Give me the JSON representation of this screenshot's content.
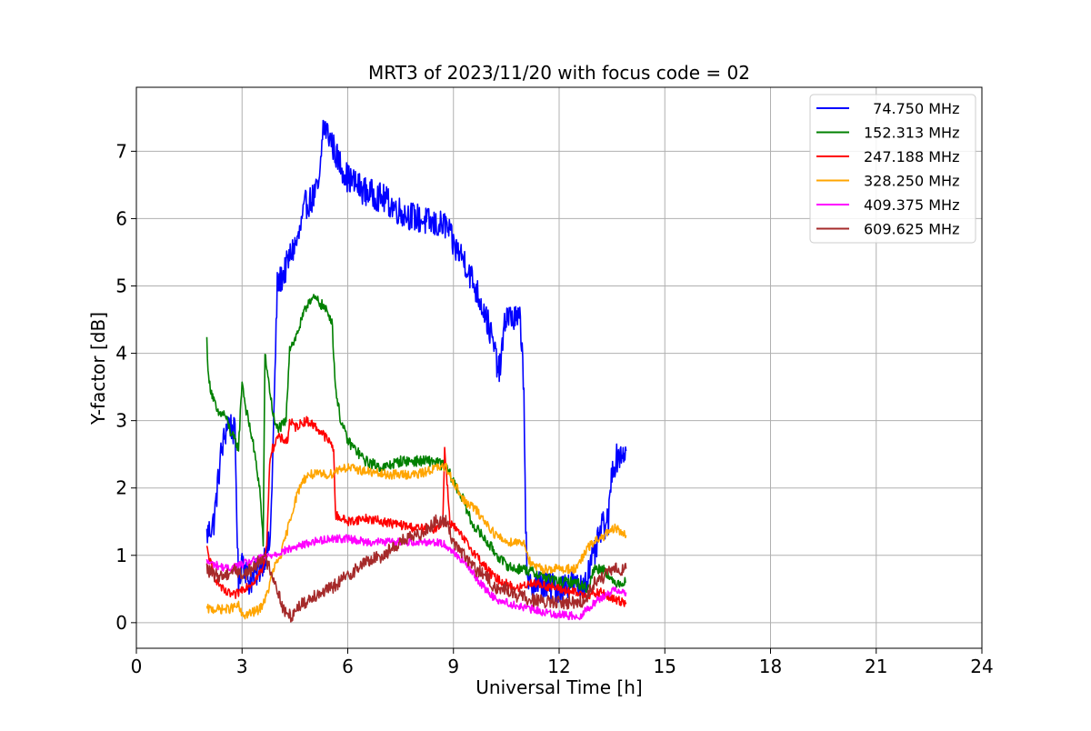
{
  "chart_data": {
    "type": "line",
    "title": "MRT3 of 2023/11/20 with focus code = 02",
    "xlabel": "Universal Time [h]",
    "ylabel": "Y-factor [dB]",
    "xlim": [
      0,
      24
    ],
    "ylim": [
      -0.38,
      7.95
    ],
    "xticks": [
      0,
      3,
      6,
      9,
      12,
      15,
      18,
      21,
      24
    ],
    "yticks": [
      0,
      1,
      2,
      3,
      4,
      5,
      6,
      7
    ],
    "grid": true,
    "legend_position": "top-right",
    "series": [
      {
        "name": "  74.750 MHz",
        "color": "#0000ff",
        "x": [
          2.0,
          2.2,
          2.4,
          2.6,
          2.8,
          2.9,
          3.0,
          3.2,
          3.5,
          3.8,
          3.9,
          4.0,
          4.2,
          4.4,
          4.6,
          4.8,
          5.0,
          5.2,
          5.3,
          5.5,
          5.7,
          6.0,
          6.5,
          7.0,
          7.5,
          8.0,
          8.5,
          8.8,
          9.0,
          9.3,
          9.6,
          9.9,
          10.1,
          10.3,
          10.5,
          10.7,
          10.9,
          11.0,
          11.05,
          11.1,
          11.3,
          11.6,
          12.0,
          12.3,
          12.6,
          12.8,
          13.0,
          13.2,
          13.4,
          13.5,
          13.7,
          13.9
        ],
        "values": [
          1.3,
          1.5,
          2.5,
          3.0,
          2.8,
          0.5,
          1.0,
          0.6,
          0.8,
          1.2,
          3.0,
          5.0,
          5.2,
          5.5,
          5.7,
          6.2,
          6.3,
          6.5,
          7.4,
          7.2,
          6.9,
          6.6,
          6.4,
          6.3,
          6.1,
          6.0,
          5.9,
          5.9,
          5.6,
          5.4,
          5.0,
          4.6,
          4.2,
          3.7,
          4.6,
          4.5,
          4.5,
          3.5,
          1.5,
          0.5,
          0.6,
          0.55,
          0.5,
          0.6,
          0.5,
          0.7,
          1.0,
          1.4,
          1.5,
          2.3,
          2.5,
          2.55
        ]
      },
      {
        "name": "152.313 MHz",
        "color": "#008000",
        "x": [
          2.0,
          2.05,
          2.15,
          2.3,
          2.5,
          2.7,
          2.9,
          3.0,
          3.1,
          3.3,
          3.5,
          3.6,
          3.65,
          3.75,
          3.85,
          3.95,
          4.1,
          4.25,
          4.35,
          4.5,
          4.7,
          4.9,
          5.1,
          5.3,
          5.55,
          5.65,
          5.8,
          6.0,
          6.5,
          7.0,
          7.5,
          8.0,
          8.5,
          8.8,
          9.0,
          9.3,
          9.5,
          9.8,
          10.1,
          10.4,
          10.7,
          11.0,
          11.5,
          12.0,
          12.5,
          12.8,
          13.0,
          13.3,
          13.5,
          13.7,
          13.9
        ],
        "values": [
          4.2,
          3.6,
          3.4,
          3.1,
          3.1,
          2.8,
          2.6,
          3.6,
          3.2,
          2.7,
          2.0,
          1.2,
          4.0,
          3.6,
          3.2,
          2.9,
          2.9,
          3.0,
          4.1,
          4.2,
          4.5,
          4.8,
          4.8,
          4.7,
          4.5,
          3.5,
          3.0,
          2.7,
          2.4,
          2.3,
          2.4,
          2.4,
          2.4,
          2.3,
          2.1,
          1.8,
          1.5,
          1.3,
          1.1,
          0.9,
          0.8,
          0.8,
          0.7,
          0.6,
          0.6,
          0.5,
          0.8,
          0.8,
          0.6,
          0.6,
          0.6
        ]
      },
      {
        "name": "247.188 MHz",
        "color": "#ff0000",
        "x": [
          2.0,
          2.2,
          2.5,
          2.8,
          3.0,
          3.3,
          3.6,
          3.7,
          3.8,
          4.0,
          4.3,
          4.35,
          4.5,
          4.8,
          5.0,
          5.3,
          5.6,
          5.65,
          6.0,
          6.5,
          7.0,
          7.5,
          8.0,
          8.5,
          8.7,
          8.75,
          8.9,
          9.2,
          9.5,
          9.8,
          10.1,
          10.4,
          10.8,
          11.2,
          11.6,
          12.0,
          12.4,
          12.8,
          13.2,
          13.5,
          13.9
        ],
        "values": [
          1.1,
          0.7,
          0.45,
          0.4,
          0.5,
          0.6,
          0.8,
          1.2,
          2.5,
          2.75,
          2.7,
          3.0,
          2.9,
          3.0,
          2.95,
          2.8,
          2.6,
          1.6,
          1.5,
          1.55,
          1.5,
          1.45,
          1.4,
          1.4,
          1.5,
          2.6,
          1.5,
          1.3,
          1.1,
          0.9,
          0.7,
          0.6,
          0.5,
          0.6,
          0.55,
          0.5,
          0.45,
          0.4,
          0.45,
          0.35,
          0.3
        ]
      },
      {
        "name": "328.250 MHz",
        "color": "#ffa500",
        "x": [
          2.0,
          2.3,
          2.6,
          2.9,
          3.0,
          3.3,
          3.5,
          3.7,
          3.9,
          4.1,
          4.3,
          4.5,
          4.7,
          4.9,
          5.2,
          5.5,
          5.8,
          6.0,
          6.5,
          7.0,
          7.5,
          8.0,
          8.5,
          8.8,
          9.0,
          9.3,
          9.6,
          9.9,
          10.2,
          10.5,
          10.8,
          11.0,
          11.2,
          11.5,
          11.8,
          12.0,
          12.2,
          12.5,
          12.8,
          13.0,
          13.3,
          13.6,
          13.9
        ],
        "values": [
          0.2,
          0.2,
          0.2,
          0.25,
          0.1,
          0.15,
          0.2,
          0.4,
          0.8,
          1.0,
          1.4,
          1.8,
          2.1,
          2.2,
          2.2,
          2.2,
          2.3,
          2.3,
          2.25,
          2.2,
          2.2,
          2.2,
          2.3,
          2.3,
          2.1,
          1.8,
          1.7,
          1.5,
          1.3,
          1.2,
          1.2,
          1.2,
          0.85,
          0.8,
          0.8,
          0.8,
          0.8,
          0.8,
          1.1,
          1.2,
          1.3,
          1.4,
          1.3
        ]
      },
      {
        "name": "409.375 MHz",
        "color": "#ff00ff",
        "x": [
          2.0,
          2.3,
          2.6,
          2.9,
          3.2,
          3.5,
          3.8,
          4.1,
          4.4,
          4.7,
          5.0,
          5.5,
          6.0,
          6.5,
          7.0,
          7.5,
          8.0,
          8.5,
          8.8,
          9.0,
          9.3,
          9.6,
          9.9,
          10.2,
          10.5,
          10.8,
          11.2,
          11.6,
          12.0,
          12.4,
          12.6,
          12.8,
          13.0,
          13.3,
          13.6,
          13.9
        ],
        "values": [
          0.9,
          0.85,
          0.8,
          0.85,
          0.9,
          0.95,
          1.0,
          1.05,
          1.1,
          1.15,
          1.2,
          1.25,
          1.25,
          1.2,
          1.2,
          1.2,
          1.2,
          1.2,
          1.15,
          1.05,
          0.9,
          0.7,
          0.5,
          0.35,
          0.3,
          0.25,
          0.2,
          0.15,
          0.12,
          0.1,
          0.1,
          0.2,
          0.3,
          0.4,
          0.5,
          0.45
        ]
      },
      {
        "name": "609.625 MHz",
        "color": "#a52a2a",
        "x": [
          2.0,
          2.2,
          2.5,
          2.8,
          3.0,
          3.3,
          3.6,
          3.8,
          4.0,
          4.2,
          4.4,
          4.6,
          4.8,
          5.0,
          5.5,
          6.0,
          6.5,
          7.0,
          7.5,
          8.0,
          8.5,
          8.8,
          9.0,
          9.3,
          9.6,
          9.9,
          10.2,
          10.5,
          10.8,
          11.2,
          11.6,
          12.0,
          12.4,
          12.6,
          12.8,
          13.0,
          13.3,
          13.6,
          13.9
        ],
        "values": [
          0.8,
          0.7,
          0.7,
          0.8,
          0.7,
          0.8,
          1.0,
          0.8,
          0.5,
          0.15,
          0.1,
          0.25,
          0.3,
          0.4,
          0.5,
          0.7,
          0.9,
          1.0,
          1.2,
          1.3,
          1.5,
          1.5,
          1.2,
          1.0,
          0.8,
          0.7,
          0.5,
          0.5,
          0.4,
          0.35,
          0.3,
          0.3,
          0.3,
          0.3,
          0.4,
          0.6,
          0.7,
          0.8,
          0.8
        ]
      }
    ]
  }
}
